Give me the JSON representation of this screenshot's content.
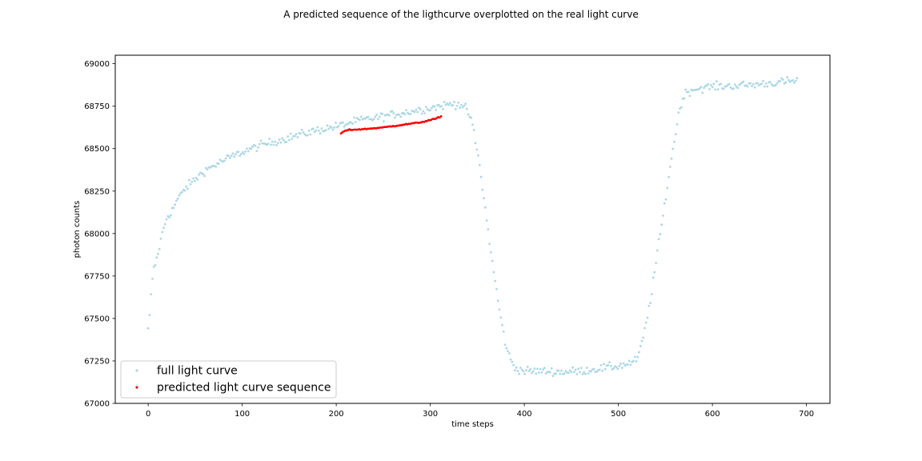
{
  "figure": {
    "title": "A predicted sequence of the ligthcurve overplotted on the real light curve"
  },
  "chart_data": {
    "type": "scatter",
    "title": "A predicted sequence of the ligthcurve overplotted on the real light curve",
    "xlabel": "time steps",
    "ylabel": "photon counts",
    "xlim": [
      -35,
      725
    ],
    "ylim": [
      67000,
      69050
    ],
    "xticks": [
      0,
      100,
      200,
      300,
      400,
      500,
      600,
      700
    ],
    "yticks": [
      67000,
      67250,
      67500,
      67750,
      68000,
      68250,
      68500,
      68750,
      69000
    ],
    "grid": false,
    "legend_position": "lower-left",
    "series": [
      {
        "name": "full light curve",
        "color": "#add8e6",
        "marker": "dot",
        "anchors": [
          [
            0,
            67430
          ],
          [
            2,
            67540
          ],
          [
            4,
            67720
          ],
          [
            6,
            67790
          ],
          [
            10,
            67870
          ],
          [
            15,
            68000
          ],
          [
            20,
            68100
          ],
          [
            25,
            68130
          ],
          [
            30,
            68190
          ],
          [
            35,
            68230
          ],
          [
            40,
            68270
          ],
          [
            50,
            68320
          ],
          [
            60,
            68370
          ],
          [
            70,
            68400
          ],
          [
            80,
            68430
          ],
          [
            90,
            68455
          ],
          [
            100,
            68480
          ],
          [
            120,
            68520
          ],
          [
            140,
            68550
          ],
          [
            160,
            68580
          ],
          [
            180,
            68610
          ],
          [
            200,
            68630
          ],
          [
            220,
            68660
          ],
          [
            240,
            68680
          ],
          [
            260,
            68700
          ],
          [
            280,
            68720
          ],
          [
            300,
            68740
          ],
          [
            320,
            68760
          ],
          [
            330,
            68765
          ],
          [
            335,
            68750
          ],
          [
            340,
            68720
          ],
          [
            345,
            68640
          ],
          [
            348,
            68540
          ],
          [
            352,
            68420
          ],
          [
            356,
            68250
          ],
          [
            360,
            68080
          ],
          [
            365,
            67870
          ],
          [
            370,
            67680
          ],
          [
            375,
            67500
          ],
          [
            380,
            67350
          ],
          [
            385,
            67260
          ],
          [
            390,
            67210
          ],
          [
            400,
            67190
          ],
          [
            420,
            67190
          ],
          [
            440,
            67185
          ],
          [
            460,
            67190
          ],
          [
            480,
            67205
          ],
          [
            500,
            67220
          ],
          [
            515,
            67240
          ],
          [
            520,
            67260
          ],
          [
            524,
            67330
          ],
          [
            528,
            67430
          ],
          [
            532,
            67540
          ],
          [
            536,
            67680
          ],
          [
            540,
            67830
          ],
          [
            544,
            67980
          ],
          [
            548,
            68120
          ],
          [
            552,
            68280
          ],
          [
            556,
            68430
          ],
          [
            560,
            68560
          ],
          [
            564,
            68700
          ],
          [
            568,
            68790
          ],
          [
            572,
            68830
          ],
          [
            580,
            68850
          ],
          [
            600,
            68865
          ],
          [
            620,
            68870
          ],
          [
            640,
            68875
          ],
          [
            660,
            68885
          ],
          [
            680,
            68895
          ],
          [
            690,
            68900
          ]
        ],
        "x_step": 1.5,
        "noise_std": 17
      },
      {
        "name": "predicted light curve sequence",
        "color": "#ff0000",
        "marker": "dot",
        "x_start": 205,
        "x_end": 312,
        "x_step": 1.5,
        "anchors": [
          [
            205,
            68590
          ],
          [
            208,
            68600
          ],
          [
            212,
            68610
          ],
          [
            230,
            68615
          ],
          [
            250,
            68625
          ],
          [
            270,
            68640
          ],
          [
            290,
            68655
          ],
          [
            305,
            68675
          ],
          [
            312,
            68690
          ]
        ]
      }
    ]
  }
}
